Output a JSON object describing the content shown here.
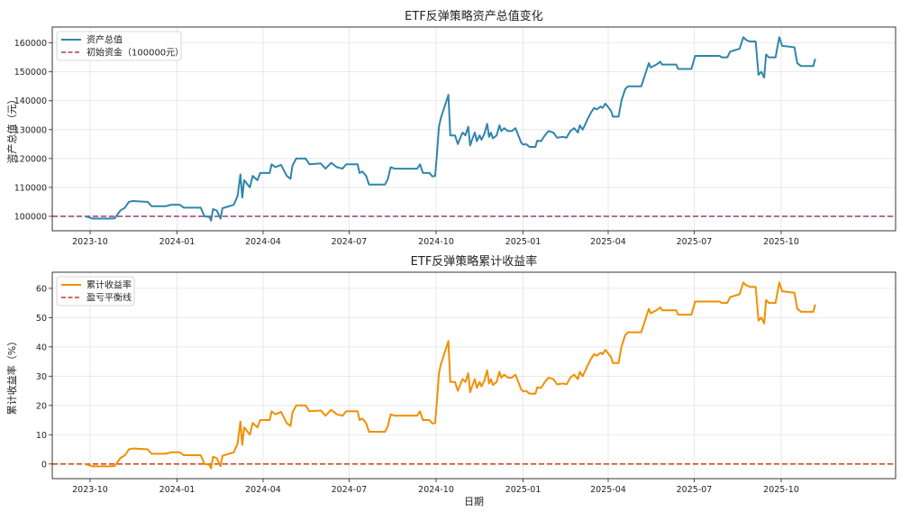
{
  "chart_data": [
    {
      "type": "line",
      "title": "ETF反弹策略资产总值变化",
      "xlabel": "",
      "ylabel": "资产总值（元）",
      "ylim": [
        95000,
        165500
      ],
      "xlim": [
        "2023-08-22",
        "2026-01-30"
      ],
      "grid": true,
      "legend_position": "top-left",
      "x_ticks": [
        "2023-10",
        "2024-01",
        "2024-04",
        "2024-07",
        "2024-10",
        "2025-01",
        "2025-04",
        "2025-07",
        "2025-10"
      ],
      "x_tick_dates": [
        "2023-10-01",
        "2024-01-01",
        "2024-04-01",
        "2024-07-01",
        "2024-10-01",
        "2025-01-01",
        "2025-04-01",
        "2025-07-01",
        "2025-10-01"
      ],
      "y_ticks": [
        100000,
        110000,
        120000,
        130000,
        140000,
        150000,
        160000
      ],
      "y_tick_labels": [
        "100000",
        "110000",
        "120000",
        "130000",
        "140000",
        "150000",
        "160000"
      ],
      "series": [
        {
          "name": "资产总值",
          "style": "solid",
          "color": "#2E86AB",
          "points": [
            [
              "2023-09-26",
              100000
            ],
            [
              "2023-10-01",
              99500
            ],
            [
              "2023-10-04",
              99200
            ],
            [
              "2023-10-20",
              99200
            ],
            [
              "2023-10-27",
              99300
            ],
            [
              "2023-11-02",
              102000
            ],
            [
              "2023-11-07",
              103000
            ],
            [
              "2023-11-11",
              105000
            ],
            [
              "2023-11-15",
              105300
            ],
            [
              "2023-12-01",
              105000
            ],
            [
              "2023-12-05",
              103500
            ],
            [
              "2023-12-20",
              103500
            ],
            [
              "2023-12-26",
              104000
            ],
            [
              "2024-01-04",
              104000
            ],
            [
              "2024-01-08",
              103000
            ],
            [
              "2024-01-26",
              103000
            ],
            [
              "2024-01-30",
              100000
            ],
            [
              "2024-02-04",
              99800
            ],
            [
              "2024-02-06",
              98500
            ],
            [
              "2024-02-08",
              102500
            ],
            [
              "2024-02-12",
              102000
            ],
            [
              "2024-02-16",
              99200
            ],
            [
              "2024-02-18",
              102800
            ],
            [
              "2024-03-01",
              104000
            ],
            [
              "2024-03-05",
              107000
            ],
            [
              "2024-03-08",
              114500
            ],
            [
              "2024-03-10",
              106500
            ],
            [
              "2024-03-12",
              112500
            ],
            [
              "2024-03-18",
              110000
            ],
            [
              "2024-03-21",
              114000
            ],
            [
              "2024-03-26",
              112500
            ],
            [
              "2024-03-29",
              115000
            ],
            [
              "2024-04-08",
              115000
            ],
            [
              "2024-04-10",
              118000
            ],
            [
              "2024-04-14",
              117000
            ],
            [
              "2024-04-20",
              117800
            ],
            [
              "2024-04-26",
              114000
            ],
            [
              "2024-04-30",
              113000
            ],
            [
              "2024-05-02",
              117500
            ],
            [
              "2024-05-06",
              120000
            ],
            [
              "2024-05-16",
              120000
            ],
            [
              "2024-05-20",
              118000
            ],
            [
              "2024-06-01",
              118300
            ],
            [
              "2024-06-06",
              116500
            ],
            [
              "2024-06-12",
              118500
            ],
            [
              "2024-06-18",
              117000
            ],
            [
              "2024-06-24",
              116500
            ],
            [
              "2024-06-28",
              118000
            ],
            [
              "2024-07-10",
              118000
            ],
            [
              "2024-07-12",
              115000
            ],
            [
              "2024-07-15",
              115500
            ],
            [
              "2024-07-19",
              114000
            ],
            [
              "2024-07-22",
              111000
            ],
            [
              "2024-08-08",
              111000
            ],
            [
              "2024-08-11",
              113000
            ],
            [
              "2024-08-14",
              117000
            ],
            [
              "2024-08-18",
              116500
            ],
            [
              "2024-08-25",
              116500
            ],
            [
              "2024-09-11",
              116500
            ],
            [
              "2024-09-14",
              118000
            ],
            [
              "2024-09-17",
              115000
            ],
            [
              "2024-09-24",
              115000
            ],
            [
              "2024-09-27",
              113800
            ],
            [
              "2024-09-30",
              114000
            ],
            [
              "2024-10-02",
              122000
            ],
            [
              "2024-10-04",
              131000
            ],
            [
              "2024-10-06",
              134000
            ],
            [
              "2024-10-10",
              138000
            ],
            [
              "2024-10-14",
              142000
            ],
            [
              "2024-10-16",
              128000
            ],
            [
              "2024-10-21",
              128000
            ],
            [
              "2024-10-24",
              125000
            ],
            [
              "2024-10-27",
              127500
            ],
            [
              "2024-10-29",
              129000
            ],
            [
              "2024-11-01",
              128000
            ],
            [
              "2024-11-04",
              131000
            ],
            [
              "2024-11-06",
              124500
            ],
            [
              "2024-11-08",
              126500
            ],
            [
              "2024-11-11",
              129000
            ],
            [
              "2024-11-13",
              126000
            ],
            [
              "2024-11-16",
              128000
            ],
            [
              "2024-11-18",
              126500
            ],
            [
              "2024-11-21",
              128500
            ],
            [
              "2024-11-24",
              132000
            ],
            [
              "2024-11-26",
              127500
            ],
            [
              "2024-11-28",
              129000
            ],
            [
              "2024-11-30",
              127000
            ],
            [
              "2024-12-04",
              128000
            ],
            [
              "2024-12-07",
              131500
            ],
            [
              "2024-12-09",
              129500
            ],
            [
              "2024-12-12",
              130500
            ],
            [
              "2024-12-16",
              129500
            ],
            [
              "2024-12-20",
              129500
            ],
            [
              "2024-12-24",
              130500
            ],
            [
              "2024-12-30",
              125500
            ],
            [
              "2025-01-01",
              124800
            ],
            [
              "2025-01-04",
              125000
            ],
            [
              "2025-01-08",
              124000
            ],
            [
              "2025-01-14",
              124000
            ],
            [
              "2025-01-16",
              126200
            ],
            [
              "2025-01-20",
              126000
            ],
            [
              "2025-01-24",
              128000
            ],
            [
              "2025-01-28",
              129500
            ],
            [
              "2025-02-02",
              129000
            ],
            [
              "2025-02-06",
              127200
            ],
            [
              "2025-02-12",
              127500
            ],
            [
              "2025-02-16",
              127200
            ],
            [
              "2025-02-20",
              129500
            ],
            [
              "2025-02-24",
              130500
            ],
            [
              "2025-02-28",
              129000
            ],
            [
              "2025-03-02",
              131500
            ],
            [
              "2025-03-05",
              130000
            ],
            [
              "2025-03-08",
              132000
            ],
            [
              "2025-03-10",
              133500
            ],
            [
              "2025-03-14",
              136000
            ],
            [
              "2025-03-17",
              137500
            ],
            [
              "2025-03-20",
              137000
            ],
            [
              "2025-03-24",
              138000
            ],
            [
              "2025-03-26",
              137500
            ],
            [
              "2025-03-29",
              139000
            ],
            [
              "2025-04-01",
              137800
            ],
            [
              "2025-04-04",
              136500
            ],
            [
              "2025-04-06",
              134500
            ],
            [
              "2025-04-12",
              134500
            ],
            [
              "2025-04-15",
              140000
            ],
            [
              "2025-04-19",
              144000
            ],
            [
              "2025-04-22",
              145000
            ],
            [
              "2025-05-06",
              145000
            ],
            [
              "2025-05-10",
              149000
            ],
            [
              "2025-05-14",
              153000
            ],
            [
              "2025-05-16",
              151500
            ],
            [
              "2025-05-22",
              152500
            ],
            [
              "2025-05-26",
              153500
            ],
            [
              "2025-05-28",
              152500
            ],
            [
              "2025-06-12",
              152500
            ],
            [
              "2025-06-14",
              151000
            ],
            [
              "2025-06-28",
              151000
            ],
            [
              "2025-07-02",
              155500
            ],
            [
              "2025-07-28",
              155500
            ],
            [
              "2025-07-30",
              155000
            ],
            [
              "2025-08-05",
              155000
            ],
            [
              "2025-08-08",
              157000
            ],
            [
              "2025-08-18",
              158000
            ],
            [
              "2025-08-22",
              162000
            ],
            [
              "2025-08-25",
              161000
            ],
            [
              "2025-08-29",
              160500
            ],
            [
              "2025-09-04",
              160500
            ],
            [
              "2025-09-07",
              149000
            ],
            [
              "2025-09-10",
              150000
            ],
            [
              "2025-09-13",
              148000
            ],
            [
              "2025-09-15",
              156000
            ],
            [
              "2025-09-18",
              155000
            ],
            [
              "2025-09-25",
              155000
            ],
            [
              "2025-09-29",
              162000
            ],
            [
              "2025-10-02",
              159000
            ],
            [
              "2025-10-15",
              158500
            ],
            [
              "2025-10-18",
              153000
            ],
            [
              "2025-10-22",
              152000
            ],
            [
              "2025-11-04",
              152000
            ],
            [
              "2025-11-06",
              154500
            ]
          ]
        },
        {
          "name": "初始资金（100000元）",
          "style": "dashed",
          "color": "#A23B72",
          "value": 100000
        }
      ]
    },
    {
      "type": "line",
      "title": "ETF反弹策略累计收益率",
      "xlabel": "日期",
      "ylabel": "累计收益率（%）",
      "ylim": [
        -5,
        65.5
      ],
      "xlim": [
        "2023-08-22",
        "2026-01-30"
      ],
      "grid": true,
      "legend_position": "top-left",
      "x_ticks": [
        "2023-10",
        "2024-01",
        "2024-04",
        "2024-07",
        "2024-10",
        "2025-01",
        "2025-04",
        "2025-07",
        "2025-10"
      ],
      "x_tick_dates": [
        "2023-10-01",
        "2024-01-01",
        "2024-04-01",
        "2024-07-01",
        "2024-10-01",
        "2025-01-01",
        "2025-04-01",
        "2025-07-01",
        "2025-10-01"
      ],
      "y_ticks": [
        0,
        10,
        20,
        30,
        40,
        50,
        60
      ],
      "y_tick_labels": [
        "0",
        "10",
        "20",
        "30",
        "40",
        "50",
        "60"
      ],
      "series": [
        {
          "name": "累计收益率",
          "style": "solid",
          "color": "#F18F01",
          "derived_from": "asset_total",
          "initial_capital": 100000
        },
        {
          "name": "盈亏平衡线",
          "style": "dashed",
          "color": "#C73E1D",
          "value": 0
        }
      ]
    }
  ]
}
